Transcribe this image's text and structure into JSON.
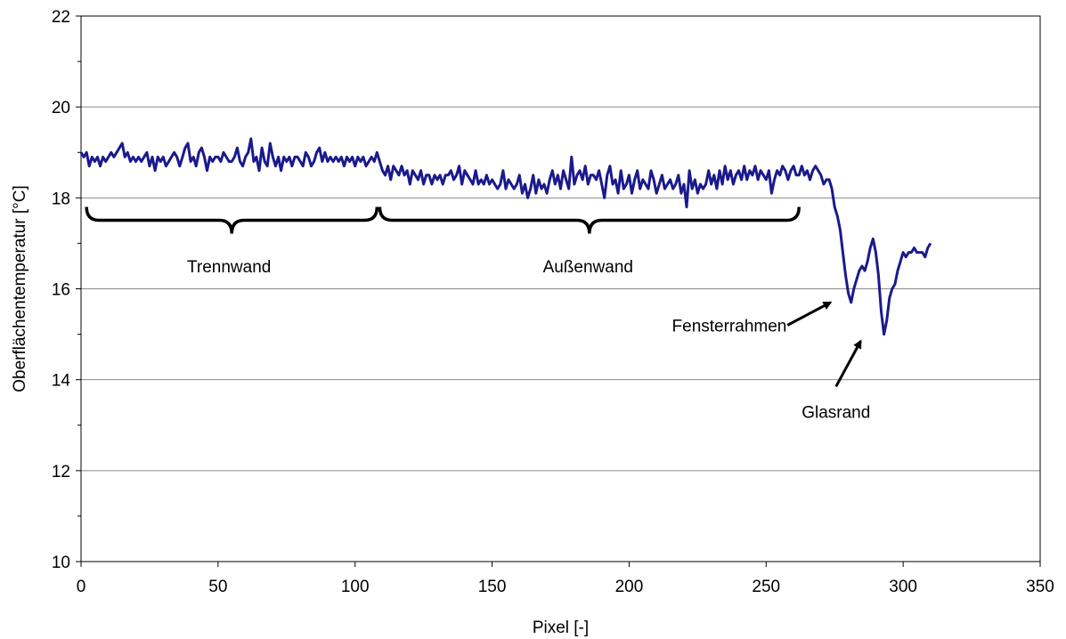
{
  "chart_data": {
    "type": "line",
    "title": "",
    "xlabel": "Pixel [-]",
    "ylabel": "Oberflächentemperatur [°C]",
    "xlim": [
      0,
      350
    ],
    "ylim": [
      10,
      22
    ],
    "x_ticks": [
      0,
      50,
      100,
      150,
      200,
      250,
      300,
      350
    ],
    "y_ticks": [
      10,
      12,
      14,
      16,
      18,
      20,
      22
    ],
    "y_minor_step": 1,
    "grid": "horizontal",
    "line_color": "#1a1a8c",
    "series": [
      {
        "name": "",
        "x_start": 0,
        "x_step": 1,
        "values": [
          19.0,
          18.9,
          19.0,
          18.7,
          18.9,
          18.8,
          18.9,
          18.7,
          18.9,
          18.8,
          18.9,
          19.0,
          18.9,
          19.0,
          19.1,
          19.2,
          18.9,
          19.0,
          18.8,
          18.9,
          18.8,
          18.9,
          18.8,
          18.9,
          19.0,
          18.7,
          18.9,
          18.6,
          18.9,
          18.8,
          18.9,
          18.7,
          18.8,
          18.9,
          19.0,
          18.9,
          18.7,
          18.9,
          19.1,
          19.2,
          18.8,
          18.9,
          18.7,
          19.0,
          19.1,
          18.9,
          18.6,
          18.9,
          18.8,
          18.9,
          18.9,
          18.8,
          19.0,
          18.9,
          18.8,
          18.8,
          18.9,
          19.1,
          18.8,
          18.7,
          18.9,
          19.0,
          19.3,
          18.8,
          18.9,
          18.6,
          19.1,
          18.8,
          18.7,
          19.2,
          18.9,
          18.7,
          18.9,
          18.6,
          18.9,
          18.8,
          18.9,
          18.7,
          18.9,
          18.9,
          18.8,
          18.7,
          19.0,
          18.9,
          18.7,
          18.8,
          19.0,
          19.1,
          18.8,
          19.0,
          18.8,
          18.9,
          18.8,
          18.9,
          18.8,
          18.9,
          18.7,
          18.9,
          18.8,
          18.9,
          18.7,
          18.9,
          18.8,
          18.9,
          18.7,
          18.8,
          18.9,
          18.8,
          19.0,
          18.8,
          18.6,
          18.5,
          18.7,
          18.4,
          18.7,
          18.6,
          18.5,
          18.7,
          18.5,
          18.6,
          18.3,
          18.6,
          18.5,
          18.4,
          18.6,
          18.3,
          18.5,
          18.5,
          18.3,
          18.5,
          18.4,
          18.5,
          18.3,
          18.5,
          18.5,
          18.6,
          18.4,
          18.5,
          18.7,
          18.3,
          18.6,
          18.5,
          18.4,
          18.3,
          18.6,
          18.3,
          18.4,
          18.3,
          18.5,
          18.3,
          18.4,
          18.3,
          18.2,
          18.3,
          18.6,
          18.2,
          18.4,
          18.3,
          18.2,
          18.3,
          18.5,
          18.1,
          18.3,
          18.0,
          18.2,
          18.5,
          18.1,
          18.4,
          18.2,
          18.3,
          18.1,
          18.4,
          18.6,
          18.3,
          18.5,
          18.2,
          18.6,
          18.4,
          18.2,
          18.9,
          18.3,
          18.5,
          18.6,
          18.4,
          18.7,
          18.3,
          18.5,
          18.5,
          18.4,
          18.6,
          18.3,
          18.0,
          18.5,
          18.7,
          18.3,
          18.4,
          18.1,
          18.6,
          18.2,
          18.3,
          18.5,
          18.1,
          18.4,
          18.6,
          18.2,
          18.4,
          18.3,
          18.2,
          18.6,
          18.4,
          18.1,
          18.3,
          18.5,
          18.2,
          18.3,
          18.4,
          18.2,
          18.3,
          18.5,
          18.1,
          18.3,
          17.8,
          18.6,
          18.2,
          18.4,
          18.1,
          18.3,
          18.2,
          18.3,
          18.6,
          18.3,
          18.5,
          18.2,
          18.6,
          18.3,
          18.7,
          18.4,
          18.6,
          18.3,
          18.5,
          18.6,
          18.4,
          18.7,
          18.4,
          18.6,
          18.5,
          18.7,
          18.4,
          18.6,
          18.5,
          18.4,
          18.6,
          18.1,
          18.4,
          18.6,
          18.5,
          18.7,
          18.6,
          18.4,
          18.6,
          18.7,
          18.5,
          18.5,
          18.7,
          18.5,
          18.6,
          18.4,
          18.6,
          18.7,
          18.6,
          18.5,
          18.3,
          18.4,
          18.4,
          18.2,
          17.8,
          17.6,
          17.3,
          16.8,
          16.3,
          15.9,
          15.7,
          16.0,
          16.2,
          16.4,
          16.5,
          16.4,
          16.6,
          16.9,
          17.1,
          16.8,
          16.3,
          15.5,
          15.0,
          15.3,
          15.8,
          16.0,
          16.1,
          16.4,
          16.6,
          16.8,
          16.7,
          16.8,
          16.8,
          16.9,
          16.8,
          16.8,
          16.8,
          16.7,
          16.9,
          17.0
        ]
      }
    ],
    "annotations": {
      "trennwand": "Trennwand",
      "aussenwand": "Außenwand",
      "fensterrahmen": "Fensterrahmen",
      "glasrand": "Glasrand"
    }
  }
}
